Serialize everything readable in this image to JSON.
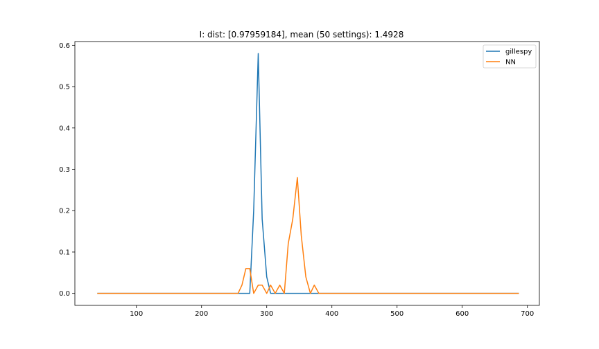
{
  "chart_data": {
    "type": "line",
    "title": "I: dist: [0.97959184], mean (50 settings): 1.4928",
    "xlabel": "",
    "ylabel": "",
    "xlim": [
      5.6,
      718.4
    ],
    "ylim": [
      -0.029,
      0.609
    ],
    "x_ticks": [
      100,
      200,
      300,
      400,
      500,
      600,
      700
    ],
    "y_ticks": [
      0.0,
      0.1,
      0.2,
      0.3,
      0.4,
      0.5,
      0.6
    ],
    "y_tick_labels": [
      "0.0",
      "0.1",
      "0.2",
      "0.3",
      "0.4",
      "0.5",
      "0.6"
    ],
    "legend_position": "top-right",
    "grid": false,
    "series": [
      {
        "name": "gillespy",
        "color": "#1f77b4",
        "x": [
          40,
          256,
          262,
          268,
          274,
          280,
          287,
          293,
          300,
          306,
          313,
          320,
          327,
          333,
          340,
          347,
          353,
          360,
          367,
          373,
          380,
          687
        ],
        "y": [
          0,
          0,
          0,
          0,
          0,
          0.2,
          0.58,
          0.18,
          0.04,
          0,
          0,
          0,
          0,
          0,
          0,
          0,
          0,
          0,
          0,
          0,
          0,
          0
        ]
      },
      {
        "name": "NN",
        "color": "#ff7f0e",
        "x": [
          40,
          256,
          262,
          268,
          274,
          280,
          287,
          293,
          300,
          306,
          313,
          320,
          327,
          333,
          340,
          347,
          353,
          360,
          367,
          373,
          380,
          687
        ],
        "y": [
          0,
          0,
          0.02,
          0.06,
          0.06,
          0,
          0.02,
          0.02,
          0,
          0.02,
          0,
          0.02,
          0,
          0.12,
          0.18,
          0.28,
          0.14,
          0.04,
          0,
          0.02,
          0,
          0
        ]
      }
    ]
  }
}
